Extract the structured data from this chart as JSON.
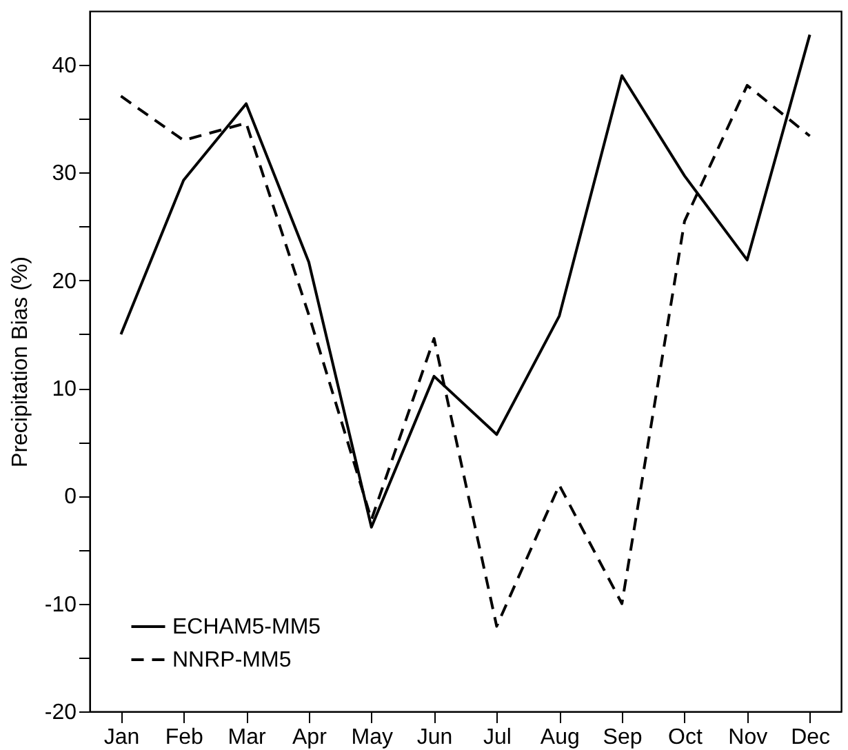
{
  "chart_data": {
    "type": "line",
    "ylabel": "Precipitation Bias (%)",
    "categories": [
      "Jan",
      "Feb",
      "Mar",
      "Apr",
      "May",
      "Jun",
      "Jul",
      "Aug",
      "Sep",
      "Oct",
      "Nov",
      "Dec"
    ],
    "series": [
      {
        "name": "ECHAM5-MM5",
        "color": "#000000",
        "line_style": "solid",
        "values": [
          15,
          29.3,
          36.4,
          21.7,
          -2.9,
          11.1,
          5.7,
          16.7,
          39,
          29.7,
          21.9,
          42.8
        ]
      },
      {
        "name": "NNRP-MM5",
        "color": "#000000",
        "line_style": "dashed",
        "values": [
          37.1,
          33,
          34.6,
          16.8,
          -2.2,
          14.6,
          -12.1,
          1,
          -10,
          25.5,
          38.1,
          33.4
        ]
      }
    ],
    "ylim": [
      -20,
      45
    ],
    "yticks": [
      -20,
      {
        "value": -15,
        "label": null
      },
      -10,
      {
        "value": -5,
        "label": null
      },
      0,
      {
        "value": 5,
        "label": null
      },
      10,
      {
        "value": 15,
        "label": null
      },
      20,
      {
        "value": 25,
        "label": null
      },
      30,
      {
        "value": 35,
        "label": null
      },
      40
    ],
    "legend": "bottom left",
    "grid": false,
    "marker": "none"
  }
}
